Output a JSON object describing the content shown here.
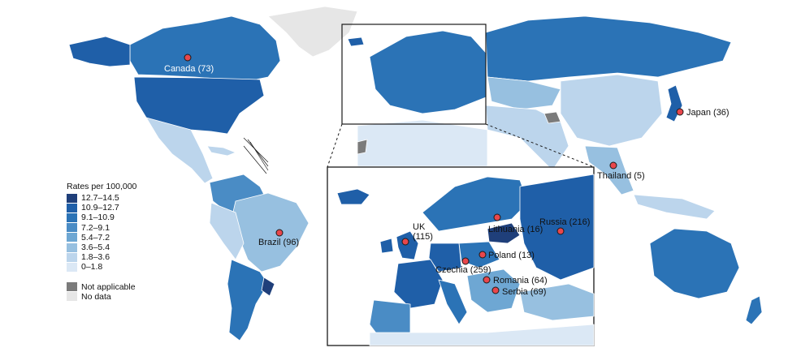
{
  "legend": {
    "title": "Rates per 100,000",
    "bins": [
      {
        "label": "12.7–14.5",
        "color": "#1f3f7a"
      },
      {
        "label": "10.9–12.7",
        "color": "#1f5fa8"
      },
      {
        "label": "9.1–10.9",
        "color": "#2b73b6"
      },
      {
        "label": "7.2–9.1",
        "color": "#4a8cc5"
      },
      {
        "label": "5.4–7.2",
        "color": "#6ea7d3"
      },
      {
        "label": "3.6–5.4",
        "color": "#97c0e0"
      },
      {
        "label": "1.8–3.6",
        "color": "#bcd5ec"
      },
      {
        "label": "0–1.8",
        "color": "#dbe8f5"
      }
    ],
    "not_applicable": {
      "label": "Not applicable",
      "color": "#7b7b7b"
    },
    "no_data": {
      "label": "No data",
      "color": "#e6e6e6"
    }
  },
  "countries": {
    "canada": "Canada (73)",
    "brazil": "Brazil (96)",
    "japan": "Japan (36)",
    "thailand": "Thailand (5)"
  },
  "inset_countries": {
    "uk_line1": "UK",
    "uk_line2": "(115)",
    "lithuania": "Lithuania (16)",
    "russia": "Russia (216)",
    "poland": "Poland (13)",
    "czechia": "Czechia (259)",
    "romania": "Romania (64)",
    "serbia": "Serbia (69)"
  }
}
